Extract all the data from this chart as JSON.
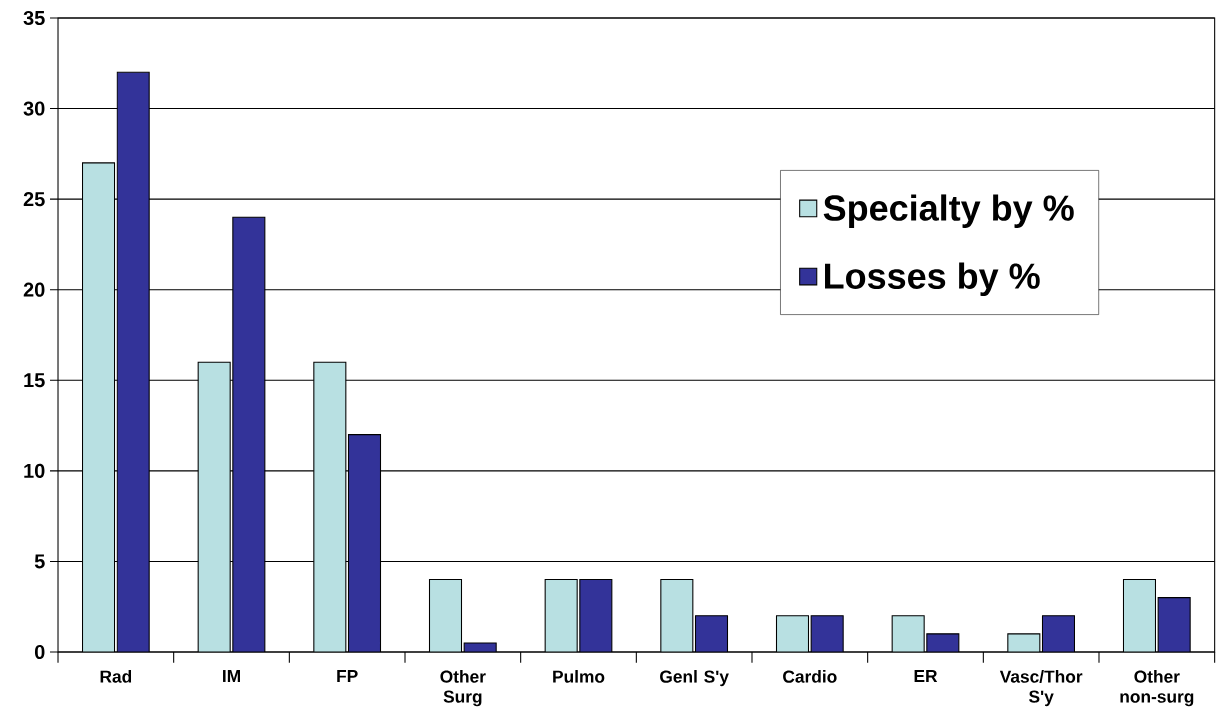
{
  "chart_data": {
    "type": "bar",
    "categories": [
      "Rad",
      "IM",
      "FP",
      "Other Surg",
      "Pulmo",
      "Genl S'y",
      "Cardio",
      "ER",
      "Vasc/Thor S'y",
      "Other non-surg"
    ],
    "series": [
      {
        "name": "Specialty by %",
        "color": "#b8e0e2",
        "values": [
          27,
          16,
          16,
          4,
          4,
          4,
          2,
          2,
          1,
          4
        ]
      },
      {
        "name": "Losses by %",
        "color": "#333399",
        "values": [
          32,
          24,
          12,
          0.5,
          4,
          2,
          2,
          1,
          2,
          3
        ]
      }
    ],
    "ylim": [
      0,
      35
    ],
    "yticks": [
      0,
      5,
      10,
      15,
      20,
      25,
      30,
      35
    ],
    "grid": "y",
    "legend": "right"
  }
}
